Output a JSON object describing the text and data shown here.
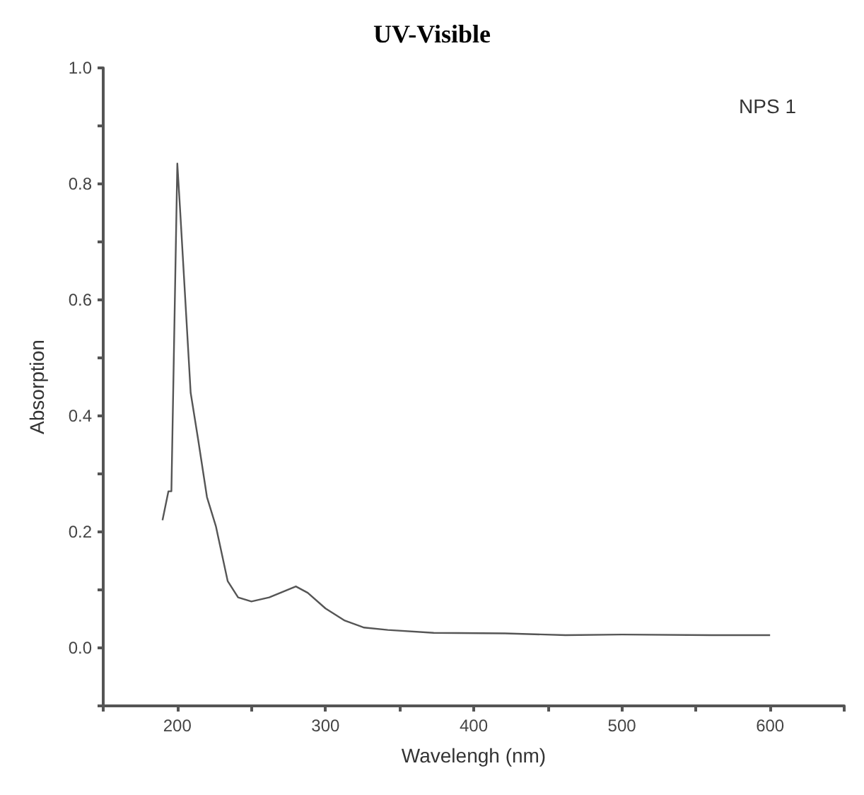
{
  "chart_data": {
    "type": "line",
    "title": "UV-Visible",
    "xlabel": "Wavelengh (nm)",
    "ylabel": "Absorption",
    "annotations": [
      "NPS 1"
    ],
    "series": [
      {
        "color": "#555555",
        "x": [
          190,
          194,
          196,
          200,
          202,
          209,
          214,
          220,
          226,
          234,
          241,
          250,
          262,
          280,
          288,
          300,
          313,
          326,
          342,
          373,
          421,
          462,
          500,
          560,
          600
        ],
        "values": [
          0.22,
          0.27,
          0.27,
          0.835,
          0.75,
          0.44,
          0.36,
          0.26,
          0.21,
          0.115,
          0.087,
          0.08,
          0.087,
          0.106,
          0.095,
          0.068,
          0.047,
          0.035,
          0.031,
          0.026,
          0.025,
          0.022,
          0.023,
          0.022,
          0.022
        ]
      }
    ],
    "xlim": [
      150,
      650
    ],
    "xticks": [
      {
        "value": 150,
        "label": null
      },
      200,
      {
        "value": 250,
        "label": null
      },
      300,
      {
        "value": 350,
        "label": null
      },
      400,
      {
        "value": 450,
        "label": null
      },
      500,
      {
        "value": 550,
        "label": null
      },
      600,
      {
        "value": 650,
        "label": null
      }
    ],
    "ylim": [
      -0.1,
      1.0
    ],
    "yticks": [
      {
        "value": -0.1,
        "label": null
      },
      "0.0",
      {
        "value": 0.1,
        "label": null
      },
      0.2,
      {
        "value": 0.3,
        "label": null
      },
      0.4,
      {
        "value": 0.5,
        "label": null
      },
      0.6,
      {
        "value": 0.7,
        "label": null
      },
      0.8,
      {
        "value": 0.9,
        "label": null
      },
      "1.0"
    ],
    "grid": false,
    "marker": "none",
    "line_style": "solid"
  }
}
